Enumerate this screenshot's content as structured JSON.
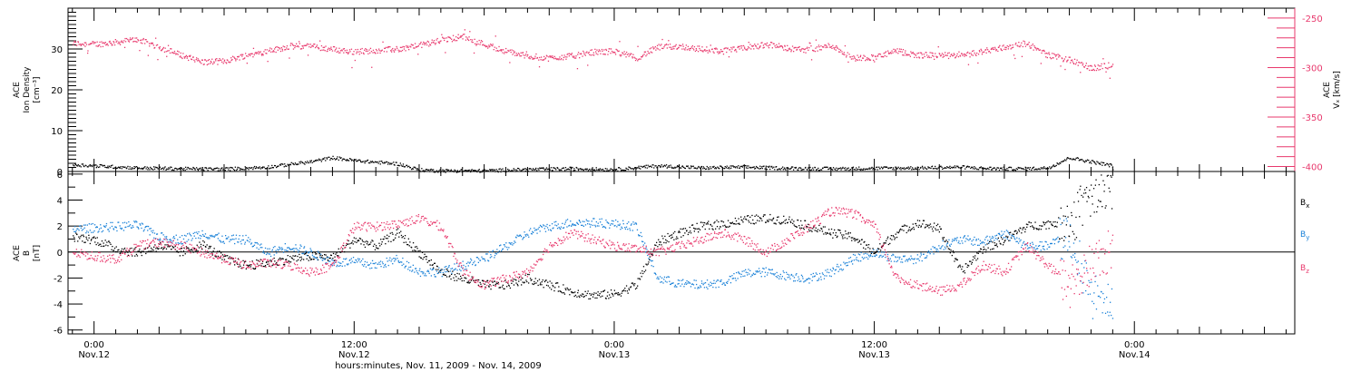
{
  "colors": {
    "black": "#000000",
    "pink": "#e8396d",
    "blue": "#1b82d8"
  },
  "chart_data": [
    {
      "type": "scatter",
      "panel": "top",
      "ylabel_left": [
        "ACE",
        "Ion Density",
        "[cm⁻³]"
      ],
      "ylabel_right": [
        "ACE",
        "Vₓ [km/s]"
      ],
      "ylim_left": [
        0,
        40
      ],
      "ylim_right": [
        -405,
        -240
      ],
      "yticks_left": [
        "0",
        "10",
        "20",
        "30"
      ],
      "yticks_right": [
        "-250",
        "-300",
        "-350",
        "-400"
      ],
      "x_unit": "hours since 2009-11-12 00:00 UT",
      "series": [
        {
          "axis": "right",
          "color": "pink",
          "x": [
            -1,
            0,
            1,
            2,
            3,
            4,
            5,
            6,
            7,
            8,
            9,
            10,
            11,
            12,
            13,
            14,
            15,
            16,
            17,
            18,
            19,
            20,
            21,
            22,
            23,
            24,
            25,
            26,
            27,
            28,
            29,
            30,
            31,
            32,
            33,
            34,
            35,
            36,
            37,
            38,
            39,
            40,
            41,
            42,
            43,
            44,
            45,
            46,
            47
          ],
          "values": [
            -275,
            -276,
            -274,
            -271,
            -279,
            -287,
            -294,
            -293,
            -287,
            -283,
            -278,
            -278,
            -281,
            -284,
            -282,
            -281,
            -277,
            -272,
            -268,
            -276,
            -283,
            -288,
            -290,
            -288,
            -284,
            -283,
            -290,
            -279,
            -278,
            -281,
            -283,
            -280,
            -276,
            -280,
            -282,
            -277,
            -290,
            -289,
            -283,
            -287,
            -287,
            -288,
            -283,
            -279,
            -275,
            -287,
            -292,
            -300,
            -297
          ]
        },
        {
          "axis": "left",
          "color": "black",
          "x": [
            -1,
            0,
            2,
            4,
            6,
            8,
            10,
            11,
            12,
            14,
            15,
            16,
            18,
            20,
            22,
            24,
            26,
            28,
            30,
            32,
            34,
            36,
            38,
            40,
            41,
            42,
            43,
            44,
            45,
            46,
            47
          ],
          "values": [
            1.8,
            1.5,
            1.0,
            0.8,
            0.7,
            1.2,
            2.5,
            3.5,
            2.8,
            2.0,
            0.5,
            0.3,
            0.3,
            0.6,
            0.8,
            0.6,
            1.5,
            1.0,
            1.2,
            0.9,
            0.8,
            0.9,
            1.0,
            1.2,
            0.9,
            0.8,
            0.8,
            1.0,
            3.5,
            2.5,
            1.5
          ]
        }
      ]
    },
    {
      "type": "scatter",
      "panel": "bottom",
      "ylabel": [
        "ACE",
        "B",
        "[nT]"
      ],
      "ylim": [
        -6.3,
        6.2
      ],
      "yticks": [
        "6",
        "4",
        "2",
        "0",
        "-2",
        "-4",
        "-6"
      ],
      "legend": [
        "Bx",
        "By",
        "Bz"
      ],
      "legend_subscripts": [
        "x",
        "y",
        "z"
      ],
      "x_unit": "hours since 2009-11-12 00:00 UT",
      "series": [
        {
          "name": "Bx",
          "color": "black",
          "x": [
            -1,
            0,
            1,
            2,
            3,
            4,
            5,
            6,
            7,
            8,
            9,
            10,
            11,
            12,
            13,
            14,
            15,
            16,
            17,
            18,
            19,
            20,
            21,
            22,
            23,
            24,
            25,
            26,
            27,
            28,
            29,
            30,
            31,
            32,
            33,
            34,
            35,
            36,
            37,
            38,
            39,
            40,
            41,
            42,
            43,
            44,
            45,
            46,
            47
          ],
          "values": [
            1.2,
            1.0,
            0.3,
            0.0,
            0.5,
            0.0,
            0.6,
            -0.5,
            -1.0,
            -0.8,
            -0.5,
            -0.3,
            -0.4,
            1.0,
            0.5,
            1.5,
            0.0,
            -1.5,
            -2.0,
            -2.5,
            -2.5,
            -2.0,
            -2.5,
            -3.0,
            -3.3,
            -3.2,
            -2.5,
            0.8,
            1.5,
            2.0,
            2.2,
            2.5,
            2.6,
            2.5,
            2.0,
            1.5,
            1.2,
            0.0,
            1.5,
            2.3,
            1.8,
            -1.5,
            0.3,
            1.0,
            2.0,
            2.2,
            2.5,
            4.0,
            5.0
          ]
        },
        {
          "name": "By",
          "color": "blue",
          "x": [
            -1,
            0,
            1,
            2,
            3,
            4,
            5,
            6,
            7,
            8,
            9,
            10,
            11,
            12,
            13,
            14,
            15,
            16,
            17,
            18,
            19,
            20,
            21,
            22,
            23,
            24,
            25,
            26,
            27,
            28,
            29,
            30,
            31,
            32,
            33,
            34,
            35,
            36,
            37,
            38,
            39,
            40,
            41,
            42,
            43,
            44,
            45,
            46,
            47
          ],
          "values": [
            1.8,
            1.9,
            2.0,
            2.1,
            1.2,
            1.0,
            1.5,
            1.0,
            1.0,
            0.0,
            0.5,
            0.0,
            -0.8,
            -0.7,
            -1.0,
            -0.5,
            -1.5,
            -1.5,
            -1.0,
            -0.5,
            0.5,
            1.5,
            2.0,
            2.3,
            2.3,
            2.2,
            2.0,
            -2.0,
            -2.4,
            -2.5,
            -2.3,
            -1.6,
            -1.5,
            -1.8,
            -2.0,
            -1.5,
            -0.5,
            0.0,
            -0.5,
            -0.5,
            0.5,
            1.0,
            0.8,
            1.5,
            0.5,
            0.5,
            1.5,
            -3.0,
            -4.5
          ]
        },
        {
          "name": "Bz",
          "color": "pink",
          "x": [
            -1,
            0,
            1,
            2,
            3,
            4,
            5,
            6,
            7,
            8,
            9,
            10,
            11,
            12,
            13,
            14,
            15,
            16,
            17,
            18,
            19,
            20,
            21,
            22,
            23,
            24,
            25,
            26,
            27,
            28,
            29,
            30,
            31,
            32,
            33,
            34,
            35,
            36,
            37,
            38,
            39,
            40,
            41,
            42,
            43,
            44,
            45,
            46,
            47
          ],
          "values": [
            0.0,
            -0.3,
            -0.5,
            0.5,
            0.8,
            0.5,
            0.0,
            -0.5,
            -1.0,
            -0.8,
            -1.0,
            -1.5,
            -1.0,
            2.0,
            2.0,
            2.2,
            2.6,
            2.0,
            -1.5,
            -2.5,
            -2.0,
            -1.5,
            0.5,
            1.5,
            1.0,
            0.5,
            0.3,
            0.0,
            0.5,
            1.0,
            1.5,
            1.0,
            0.0,
            1.0,
            2.0,
            3.2,
            3.0,
            2.0,
            -2.0,
            -2.5,
            -3.0,
            -2.5,
            -1.0,
            -1.5,
            0.5,
            -1.0,
            -2.5,
            -1.0,
            0.5
          ]
        }
      ]
    }
  ],
  "x_axis": {
    "ticks": [
      {
        "hour": 0,
        "time": "0:00",
        "day": "Nov.12"
      },
      {
        "hour": 12,
        "time": "12:00",
        "day": "Nov.12"
      },
      {
        "hour": 24,
        "time": "0:00",
        "day": "Nov.13"
      },
      {
        "hour": 36,
        "time": "12:00",
        "day": "Nov.13"
      },
      {
        "hour": 48,
        "time": "0:00",
        "day": "Nov.14"
      }
    ],
    "label": "hours:minutes, Nov. 11, 2009 - Nov. 14, 2009"
  }
}
